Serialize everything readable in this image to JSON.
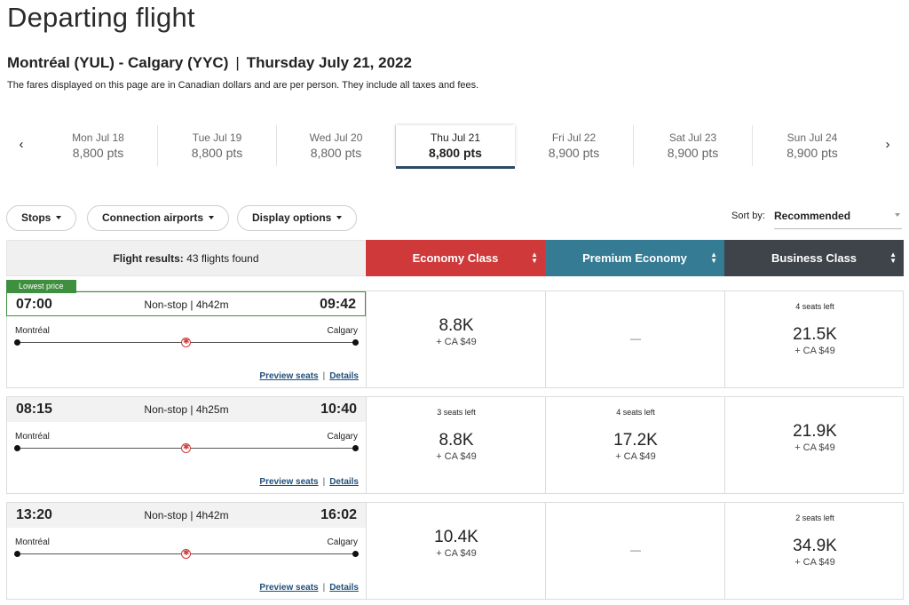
{
  "page_title": "Departing flight",
  "route": {
    "cities": "Montréal (YUL) - Calgary (YYC)",
    "separator": "|",
    "date": "Thursday July 21, 2022"
  },
  "fare_note": "The fares displayed on this page are in Canadian dollars and are per person. They include all taxes and fees.",
  "carousel": {
    "prev_icon": "‹",
    "next_icon": "›",
    "days": [
      {
        "label": "Mon Jul 18",
        "pts": "8,800 pts"
      },
      {
        "label": "Tue Jul 19",
        "pts": "8,800 pts"
      },
      {
        "label": "Wed Jul 20",
        "pts": "8,800 pts"
      },
      {
        "label": "Thu Jul 21",
        "pts": "8,800 pts"
      },
      {
        "label": "Fri Jul 22",
        "pts": "8,900 pts"
      },
      {
        "label": "Sat Jul 23",
        "pts": "8,900 pts"
      },
      {
        "label": "Sun Jul 24",
        "pts": "8,900 pts"
      }
    ],
    "selected_index": 3
  },
  "filters": {
    "stops": "Stops",
    "connection": "Connection airports",
    "display": "Display options"
  },
  "sort": {
    "label": "Sort by:",
    "value": "Recommended"
  },
  "results": {
    "label": "Flight results:",
    "count": "43 flights found"
  },
  "cabins": {
    "economy": "Economy Class",
    "premium": "Premium Economy",
    "business": "Business Class",
    "sort_icon": "▲▼"
  },
  "flights": [
    {
      "badge": "Lowest price",
      "dep": "07:00",
      "summary": "Non-stop | 4h42m",
      "arr": "09:42",
      "origin": "Montréal",
      "dest": "Calgary",
      "preview": "Preview seats",
      "pipe": "|",
      "details": "Details",
      "economy": {
        "seats": "",
        "price": "8.8K",
        "fees": "+ CA $49"
      },
      "premium": {
        "dash": "—"
      },
      "business": {
        "seats": "4 seats left",
        "price": "21.5K",
        "fees": "+ CA $49"
      }
    },
    {
      "dep": "08:15",
      "summary": "Non-stop | 4h25m",
      "arr": "10:40",
      "origin": "Montréal",
      "dest": "Calgary",
      "preview": "Preview seats",
      "pipe": "|",
      "details": "Details",
      "economy": {
        "seats": "3 seats left",
        "price": "8.8K",
        "fees": "+ CA $49"
      },
      "premium": {
        "seats": "4 seats left",
        "price": "17.2K",
        "fees": "+ CA $49"
      },
      "business": {
        "seats": "",
        "price": "21.9K",
        "fees": "+ CA $49"
      }
    },
    {
      "dep": "13:20",
      "summary": "Non-stop | 4h42m",
      "arr": "16:02",
      "origin": "Montréal",
      "dest": "Calgary",
      "preview": "Preview seats",
      "pipe": "|",
      "details": "Details",
      "economy": {
        "seats": "",
        "price": "10.4K",
        "fees": "+ CA $49"
      },
      "premium": {
        "dash": "—"
      },
      "business": {
        "seats": "2 seats left",
        "price": "34.9K",
        "fees": "+ CA $49"
      }
    }
  ]
}
